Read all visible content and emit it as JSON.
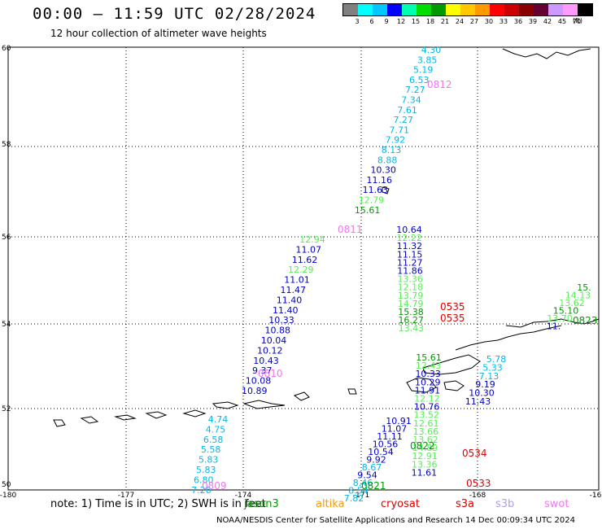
{
  "header": {
    "title": "00:00 – 11:59 UTC 02/28/2024",
    "subtitle": "12 hour collection of altimeter wave heights"
  },
  "color_scale": {
    "labels": [
      "3",
      "6",
      "9",
      "12",
      "15",
      "18",
      "21",
      "24",
      "27",
      "30",
      "33",
      "36",
      "39",
      "42",
      "45",
      "70"
    ],
    "unit": "(ft)",
    "colors": [
      "#808080",
      "#00ffff",
      "#00c8ff",
      "#0000ff",
      "#00ffb0",
      "#00dd00",
      "#009a00",
      "#ffff00",
      "#ffc800",
      "#ff9900",
      "#ff0000",
      "#cc0000",
      "#880000",
      "#660033",
      "#cc99ff",
      "#ff99ff",
      "#000000"
    ]
  },
  "axes": {
    "lat_labels": [
      "60",
      "58",
      "56",
      "54",
      "52",
      "50"
    ],
    "lon_labels": [
      "-180",
      "-177",
      "-174",
      "-171",
      "-168",
      "-16"
    ]
  },
  "colors": {
    "cyan": "#00b8e8",
    "blue": "#0000cc",
    "lightgreen": "#55ee55",
    "green": "#009900",
    "red": "#dd0000",
    "pink": "#ee77ee",
    "orange": "#ff9900",
    "lavender": "#b0a0ee"
  },
  "tracks": [
    {
      "time": "0812",
      "time_color": "pink",
      "points": [
        {
          "v": "4.30",
          "c": "cyan"
        },
        {
          "v": "3.85",
          "c": "cyan"
        },
        {
          "v": "5.19",
          "c": "cyan"
        },
        {
          "v": "6.53",
          "c": "cyan"
        },
        {
          "v": "7.27",
          "c": "cyan"
        },
        {
          "v": "7.34",
          "c": "cyan"
        },
        {
          "v": "7.61",
          "c": "cyan"
        },
        {
          "v": "7.27",
          "c": "cyan"
        },
        {
          "v": "7.71",
          "c": "cyan"
        },
        {
          "v": "7.92",
          "c": "cyan"
        },
        {
          "v": "8.13",
          "c": "cyan"
        },
        {
          "v": "8.88",
          "c": "cyan"
        },
        {
          "v": "10.30",
          "c": "blue"
        },
        {
          "v": "11.16",
          "c": "blue"
        },
        {
          "v": "11.63",
          "c": "blue"
        },
        {
          "v": "12.79",
          "c": "lightgreen"
        },
        {
          "v": "15.61",
          "c": "green"
        }
      ]
    },
    {
      "time": "0811",
      "time_color": "pink",
      "points": [
        {
          "v": "12.94",
          "c": "lightgreen"
        },
        {
          "v": "11.07",
          "c": "blue"
        },
        {
          "v": "11.62",
          "c": "blue"
        },
        {
          "v": "12.29",
          "c": "lightgreen"
        },
        {
          "v": "11.01",
          "c": "blue"
        },
        {
          "v": "11.47",
          "c": "blue"
        },
        {
          "v": "11.40",
          "c": "blue"
        },
        {
          "v": "11.40",
          "c": "blue"
        },
        {
          "v": "10.33",
          "c": "blue"
        },
        {
          "v": "10.88",
          "c": "blue"
        },
        {
          "v": "10.04",
          "c": "blue"
        },
        {
          "v": "10.12",
          "c": "blue"
        },
        {
          "v": "10.43",
          "c": "blue"
        },
        {
          "v": "9.37",
          "c": "blue"
        },
        {
          "v": "10.08",
          "c": "blue"
        },
        {
          "v": "10.89",
          "c": "blue"
        }
      ]
    },
    {
      "time": "0810",
      "time_color": "pink",
      "points": [
        {
          "v": "4.74",
          "c": "cyan"
        },
        {
          "v": "4.75",
          "c": "cyan"
        },
        {
          "v": "6.58",
          "c": "cyan"
        },
        {
          "v": "5.58",
          "c": "cyan"
        },
        {
          "v": "5.83",
          "c": "cyan"
        },
        {
          "v": "5.83",
          "c": "cyan"
        },
        {
          "v": "6.80",
          "c": "cyan"
        },
        {
          "v": "7.26",
          "c": "cyan"
        }
      ]
    },
    {
      "time": "0809",
      "time_color": "pink",
      "points": []
    },
    {
      "time": "0535",
      "time_color": "red",
      "points": [
        {
          "v": "10.64",
          "c": "blue"
        },
        {
          "v": "12.22",
          "c": "lightgreen"
        },
        {
          "v": "11.32",
          "c": "blue"
        },
        {
          "v": "11.15",
          "c": "blue"
        },
        {
          "v": "11.27",
          "c": "blue"
        },
        {
          "v": "11.86",
          "c": "blue"
        },
        {
          "v": "13.36",
          "c": "lightgreen"
        },
        {
          "v": "12.18",
          "c": "lightgreen"
        },
        {
          "v": "13.79",
          "c": "lightgreen"
        },
        {
          "v": "14.79",
          "c": "lightgreen"
        },
        {
          "v": "15.38",
          "c": "green"
        },
        {
          "v": "16.27",
          "c": "green"
        },
        {
          "v": "13.43",
          "c": "lightgreen"
        }
      ]
    },
    {
      "time": "0535",
      "time_color": "red",
      "points": []
    },
    {
      "time": "0534",
      "time_color": "red",
      "points": [
        {
          "v": "15.61",
          "c": "green"
        },
        {
          "v": "12.43",
          "c": "lightgreen"
        },
        {
          "v": "10.33",
          "c": "blue"
        },
        {
          "v": "10.29",
          "c": "blue"
        },
        {
          "v": "11.91",
          "c": "blue"
        },
        {
          "v": "12.12",
          "c": "lightgreen"
        },
        {
          "v": "10.76",
          "c": "blue"
        },
        {
          "v": "13.52",
          "c": "lightgreen"
        },
        {
          "v": "12.61",
          "c": "lightgreen"
        },
        {
          "v": "13.66",
          "c": "lightgreen"
        },
        {
          "v": "13.62",
          "c": "lightgreen"
        },
        {
          "v": "14.89",
          "c": "lightgreen"
        },
        {
          "v": "12.91",
          "c": "lightgreen"
        },
        {
          "v": "13.36",
          "c": "lightgreen"
        },
        {
          "v": "11.61",
          "c": "blue"
        }
      ]
    },
    {
      "time": "0533",
      "time_color": "red",
      "points": [
        {
          "v": "5.78",
          "c": "cyan"
        },
        {
          "v": "5.33",
          "c": "cyan"
        },
        {
          "v": "7.13",
          "c": "cyan"
        },
        {
          "v": "9.19",
          "c": "blue"
        },
        {
          "v": "10.30",
          "c": "blue"
        },
        {
          "v": "11.43",
          "c": "blue"
        }
      ]
    },
    {
      "time": "0822",
      "time_color": "green",
      "points": [
        {
          "v": "10.91",
          "c": "blue"
        },
        {
          "v": "11.07",
          "c": "blue"
        },
        {
          "v": "11.11",
          "c": "blue"
        },
        {
          "v": "10.56",
          "c": "blue"
        },
        {
          "v": "10.54",
          "c": "blue"
        },
        {
          "v": "9.92",
          "c": "blue"
        },
        {
          "v": "8.67",
          "c": "cyan"
        },
        {
          "v": "9.54",
          "c": "blue"
        },
        {
          "v": "8.46",
          "c": "cyan"
        },
        {
          "v": "8.54",
          "c": "cyan"
        },
        {
          "v": "7.82",
          "c": "cyan"
        }
      ]
    },
    {
      "time": "0821",
      "time_color": "green",
      "points": []
    },
    {
      "time": "0823",
      "time_color": "green",
      "points": [
        {
          "v": "15.",
          "c": "green"
        },
        {
          "v": "14.13",
          "c": "lightgreen"
        },
        {
          "v": "13.62",
          "c": "lightgreen"
        },
        {
          "v": "15.10",
          "c": "green"
        },
        {
          "v": "13.70",
          "c": "lightgreen"
        },
        {
          "v": "11.",
          "c": "blue"
        }
      ]
    }
  ],
  "note": "note: 1) Time is in UTC; 2) SWH is in feet",
  "legend": [
    {
      "label": "jason3",
      "color": "green"
    },
    {
      "label": "altika",
      "color": "orange"
    },
    {
      "label": "cryosat",
      "color": "red"
    },
    {
      "label": "s3a",
      "color": "red"
    },
    {
      "label": "s3b",
      "color": "lavender"
    },
    {
      "label": "swot",
      "color": "pink"
    }
  ],
  "footer": "NOAA/NESDIS Center for Satellite Applications and Research    14 Dec 00:09:34 UTC 2024"
}
